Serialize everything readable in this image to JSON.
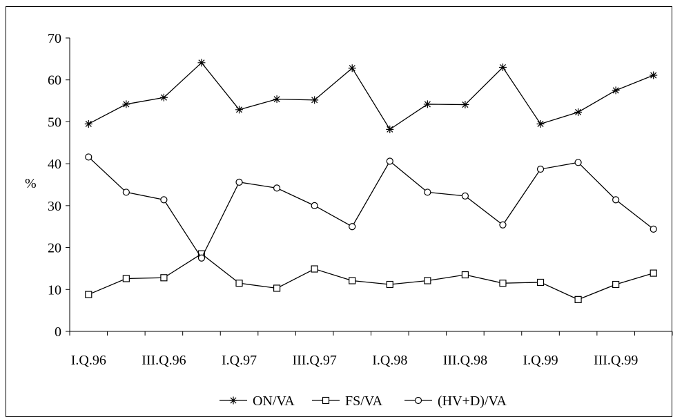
{
  "chart_data": {
    "type": "line",
    "title": "",
    "xlabel": "",
    "ylabel": "%",
    "ylim": [
      0,
      70
    ],
    "yticks": [
      0,
      10,
      20,
      30,
      40,
      50,
      60,
      70
    ],
    "grid": false,
    "legend_placement": "bottom-center",
    "categories": [
      "I.Q.96",
      "II.Q.96",
      "III.Q.96",
      "IV.Q.96",
      "I.Q.97",
      "II.Q.97",
      "III.Q.97",
      "IV.Q.97",
      "I.Q.98",
      "II.Q.98",
      "III.Q.98",
      "IV.Q.98",
      "I.Q.99",
      "II.Q.99",
      "III.Q.99",
      "IV.Q.99"
    ],
    "x_tick_labels": [
      "I.Q.96",
      "III.Q.96",
      "I.Q.97",
      "III.Q.97",
      "I.Q.98",
      "III.Q.98",
      "I.Q.99",
      "III.Q.99"
    ],
    "series": [
      {
        "name": "ON/VA",
        "marker": "asterisk",
        "color": "#000000",
        "values": [
          49.5,
          54.2,
          55.8,
          64.1,
          52.9,
          55.4,
          55.2,
          62.8,
          48.2,
          54.2,
          54.1,
          63.0,
          49.5,
          52.3,
          57.5,
          61.1
        ]
      },
      {
        "name": "FS/VA",
        "marker": "square",
        "color": "#000000",
        "values": [
          8.8,
          12.6,
          12.8,
          18.5,
          11.5,
          10.3,
          14.9,
          12.1,
          11.2,
          12.1,
          13.5,
          11.5,
          11.7,
          7.6,
          11.2,
          13.9
        ]
      },
      {
        "name": "(HV+D)/VA",
        "marker": "circle",
        "color": "#000000",
        "values": [
          41.6,
          33.2,
          31.4,
          17.5,
          35.6,
          34.2,
          30.0,
          25.0,
          40.6,
          33.2,
          32.3,
          25.4,
          38.7,
          40.3,
          31.4,
          24.4
        ]
      }
    ]
  }
}
